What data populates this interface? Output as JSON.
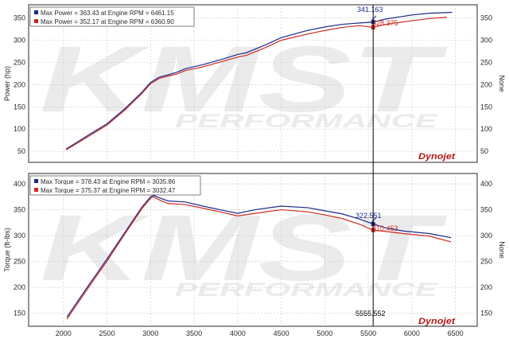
{
  "colors": {
    "blue": "#1c2a8c",
    "red": "#cc2a22",
    "grid": "#c8c8c8",
    "axis": "#2a2a2a",
    "cursor": "#000000"
  },
  "watermark": {
    "brand": "KMST",
    "sub": "PERFORMANCE"
  },
  "logo": {
    "text": "Dynojet"
  },
  "cursor": {
    "x_label": "5555.552"
  },
  "chart_data": [
    {
      "type": "line",
      "ylabel": "Power (hp)",
      "y2label": "None",
      "xlim": [
        1600,
        6750
      ],
      "ylim": [
        25,
        380
      ],
      "yticks": [
        50,
        100,
        150,
        200,
        250,
        300,
        350
      ],
      "grid": true,
      "legend_placement": "top-left",
      "legend": [
        "Max Power = 363.43 at Engine RPM = 6461.15",
        "Max Power = 352.17 at Engine RPM = 6360.90"
      ],
      "series": [
        {
          "color": "blue",
          "x": [
            2030,
            2300,
            2500,
            2700,
            2900,
            3000,
            3100,
            3200,
            3300,
            3400,
            3600,
            3800,
            4000,
            4100,
            4300,
            4500,
            4800,
            5000,
            5200,
            5400,
            5555,
            5700,
            6000,
            6200,
            6461
          ],
          "y": [
            55,
            88,
            112,
            145,
            183,
            205,
            217,
            222,
            228,
            236,
            245,
            256,
            268,
            272,
            288,
            306,
            322,
            330,
            336,
            339,
            341,
            348,
            357,
            361,
            363
          ]
        },
        {
          "color": "red",
          "x": [
            2030,
            2300,
            2500,
            2700,
            2900,
            3000,
            3100,
            3200,
            3300,
            3400,
            3600,
            3800,
            4000,
            4100,
            4300,
            4500,
            4800,
            5000,
            5200,
            5400,
            5555,
            5700,
            6000,
            6200,
            6400
          ],
          "y": [
            53,
            85,
            109,
            142,
            180,
            202,
            214,
            219,
            224,
            232,
            240,
            251,
            262,
            266,
            282,
            300,
            314,
            322,
            329,
            333,
            329,
            336,
            344,
            349,
            352
          ]
        }
      ],
      "annotations": [
        {
          "text": "341.163",
          "color": "blue"
        },
        {
          "text": "328.375",
          "color": "red"
        }
      ]
    },
    {
      "type": "line",
      "ylabel": "Torque (ft-lbs)",
      "y2label": "None",
      "xlim": [
        1600,
        6750
      ],
      "ylim": [
        125,
        420
      ],
      "yticks": [
        150,
        200,
        250,
        300,
        350,
        400
      ],
      "xticks": [
        2000,
        2500,
        3000,
        3500,
        4000,
        4500,
        5000,
        5500,
        6000,
        6500
      ],
      "grid": true,
      "legend_placement": "top-left",
      "legend": [
        "Max Torque = 378.43 at Engine RPM = 3035.86",
        "Max Torque = 375.37 at Engine RPM = 3032.47"
      ],
      "series": [
        {
          "color": "blue",
          "x": [
            2040,
            2300,
            2500,
            2700,
            2900,
            3000,
            3036,
            3100,
            3200,
            3400,
            3600,
            3800,
            4000,
            4200,
            4500,
            4800,
            5000,
            5200,
            5400,
            5555,
            5700,
            5900,
            6200,
            6450
          ],
          "y": [
            143,
            207,
            255,
            305,
            355,
            375,
            378,
            373,
            367,
            365,
            357,
            350,
            343,
            350,
            357,
            354,
            348,
            342,
            332,
            322.5,
            315,
            309,
            304,
            296
          ]
        },
        {
          "color": "red",
          "x": [
            2040,
            2300,
            2500,
            2700,
            2900,
            3000,
            3032,
            3100,
            3200,
            3400,
            3600,
            3800,
            4000,
            4200,
            4500,
            4800,
            5000,
            5200,
            5400,
            5555,
            5700,
            5900,
            6200,
            6450
          ],
          "y": [
            139,
            203,
            251,
            302,
            352,
            372,
            375,
            369,
            362,
            360,
            353,
            346,
            338,
            343,
            350,
            346,
            340,
            333,
            322,
            310.5,
            308,
            304,
            299,
            288
          ]
        }
      ],
      "annotations": [
        {
          "text": "322.551",
          "color": "blue"
        },
        {
          "text": "310.453",
          "color": "red"
        }
      ]
    }
  ]
}
